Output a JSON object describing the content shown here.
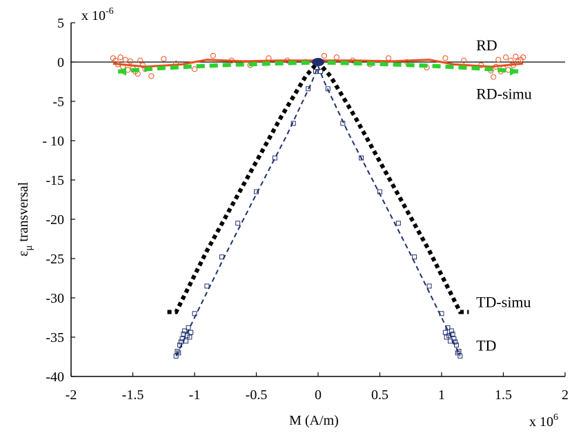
{
  "chart_data": {
    "type": "scatter",
    "xlabel": "M (A/m)",
    "ylabel_symbol": "ε",
    "ylabel_sub": "μ",
    "ylabel_rest": " transversal",
    "x_multiplier_base": "x 10",
    "x_multiplier_exp": "6",
    "y_multiplier_base": "x 10",
    "y_multiplier_exp": "-6",
    "xlim": [
      -2,
      2
    ],
    "ylim": [
      -40,
      5
    ],
    "x_ticks": [
      -2,
      -1.5,
      -1,
      -0.5,
      0,
      0.5,
      1,
      1.5,
      2
    ],
    "x_tick_labels": [
      "-2",
      "-1.5",
      "-1",
      "-0.5",
      "0",
      "0.5",
      "1",
      "1.5",
      "2"
    ],
    "y_ticks": [
      5,
      0,
      -5,
      -10,
      -15,
      -20,
      -25,
      -30,
      -35,
      -40
    ],
    "y_tick_labels": [
      "5",
      "0",
      "-5",
      "- 10",
      "-15",
      "-20",
      "-25",
      "-30",
      "-35",
      "-40"
    ],
    "grid": false,
    "annotations": [
      {
        "text": "RD",
        "x": 1.28,
        "y": 2.2
      },
      {
        "text": "RD-simu",
        "x": 1.28,
        "y": -4.0
      },
      {
        "text": "TD-simu",
        "x": 1.28,
        "y": -30.5
      },
      {
        "text": "TD",
        "x": 1.28,
        "y": -36.0
      }
    ],
    "zero_line": {
      "y": 0,
      "x_range": [
        -2,
        2
      ]
    },
    "series": [
      {
        "key": "rd_meas",
        "marker": "circle",
        "color": "#e8501f",
        "x": [
          -1.66,
          -1.64,
          -1.62,
          -1.6,
          -1.58,
          -1.56,
          -1.54,
          -1.52,
          -1.5,
          -1.48,
          -1.46,
          -1.44,
          -1.42,
          -1.4,
          -1.35,
          -1.25,
          -1.15,
          -1.0,
          -0.85,
          -0.7,
          -0.55,
          -0.4,
          -0.25,
          -0.1,
          0.05,
          0.15,
          0.28,
          0.42,
          0.57,
          0.72,
          0.88,
          1.03,
          1.18,
          1.32,
          1.4,
          1.42,
          1.44,
          1.46,
          1.48,
          1.5,
          1.52,
          1.54,
          1.56,
          1.58,
          1.6,
          1.62,
          1.64,
          1.66
        ],
        "y": [
          0.5,
          0.2,
          -0.3,
          0.6,
          -0.6,
          0.3,
          -1.0,
          0.1,
          -0.8,
          -1.2,
          -1.5,
          0.2,
          -0.4,
          -0.9,
          -1.8,
          0.4,
          -0.2,
          -0.9,
          0.8,
          0.2,
          -0.4,
          0.5,
          0.2,
          0.0,
          0.8,
          0.6,
          0.2,
          -0.3,
          0.5,
          0.0,
          -0.7,
          0.5,
          0.2,
          -0.4,
          -1.1,
          -1.9,
          -0.6,
          0.3,
          -1.2,
          -0.8,
          0.6,
          -1.0,
          0.2,
          -0.4,
          0.7,
          0.1,
          0.3,
          0.6
        ]
      },
      {
        "key": "rd_meas_curve",
        "line": "solid",
        "color": "#e8501f",
        "x": [
          -1.66,
          -1.4,
          -1.1,
          -0.9,
          -0.6,
          -0.3,
          0.0,
          0.3,
          0.6,
          0.9,
          1.1,
          1.4,
          1.66
        ],
        "y": [
          -0.2,
          -0.6,
          -0.3,
          0.3,
          0.1,
          0.2,
          0.2,
          0.2,
          0.1,
          0.3,
          -0.3,
          -0.6,
          -0.2
        ]
      },
      {
        "key": "rd_simu",
        "line": "dashed-thick",
        "color": "#2ed12e",
        "x": [
          -1.62,
          -1.3,
          -1.0,
          -0.7,
          -0.4,
          -0.15,
          0.0,
          0.15,
          0.4,
          0.7,
          1.0,
          1.3,
          1.62
        ],
        "y": [
          -1.2,
          -0.8,
          -0.55,
          -0.35,
          -0.2,
          -0.1,
          -0.05,
          -0.1,
          -0.2,
          -0.35,
          -0.55,
          -0.8,
          -1.2
        ]
      },
      {
        "key": "td_simu",
        "line": "dotted-thick",
        "color": "#000000",
        "x": [
          -1.22,
          -1.15,
          -0.9,
          -0.6,
          -0.3,
          -0.1,
          0.0,
          0.1,
          0.3,
          0.6,
          0.9,
          1.15,
          1.22
        ],
        "y": [
          -31.8,
          -31.8,
          -24.0,
          -15.5,
          -7.0,
          -1.8,
          0.0,
          -1.8,
          -7.0,
          -15.5,
          -24.0,
          -31.8,
          -31.8
        ]
      },
      {
        "key": "td_meas",
        "marker": "square",
        "color": "#1f2f6e",
        "x": [
          -1.15,
          -1.14,
          -1.13,
          -1.12,
          -1.11,
          -1.1,
          -1.09,
          -1.08,
          -1.07,
          -1.06,
          -1.05,
          -1.04,
          -1.03,
          -1.0,
          -0.9,
          -0.78,
          -0.65,
          -0.5,
          -0.35,
          -0.2,
          -0.08,
          -0.02,
          0.02,
          0.08,
          0.2,
          0.35,
          0.5,
          0.65,
          0.78,
          0.9,
          1.0,
          1.03,
          1.04,
          1.05,
          1.06,
          1.07,
          1.08,
          1.09,
          1.1,
          1.11,
          1.12,
          1.13,
          1.14,
          1.15
        ],
        "y": [
          -37.4,
          -36.8,
          -37.0,
          -36.0,
          -35.6,
          -35.2,
          -34.6,
          -34.2,
          -35.5,
          -34.8,
          -33.8,
          -35.0,
          -34.4,
          -32.0,
          -28.5,
          -24.8,
          -20.5,
          -16.5,
          -12.2,
          -7.8,
          -3.4,
          -1.2,
          -1.2,
          -3.4,
          -7.8,
          -12.2,
          -16.5,
          -20.5,
          -24.8,
          -28.5,
          -32.0,
          -34.4,
          -35.0,
          -33.8,
          -34.8,
          -35.5,
          -34.2,
          -34.6,
          -35.2,
          -35.6,
          -36.0,
          -37.0,
          -36.8,
          -37.4
        ]
      },
      {
        "key": "td_meas_curve",
        "line": "dashed",
        "color": "#1f2f6e",
        "x": [
          -1.15,
          -1.0,
          -0.75,
          -0.5,
          -0.25,
          -0.05,
          0.0,
          0.05,
          0.25,
          0.5,
          0.75,
          1.0,
          1.15
        ],
        "y": [
          -37.4,
          -32.5,
          -24.5,
          -16.8,
          -9.2,
          -2.5,
          -0.5,
          -2.5,
          -9.2,
          -16.8,
          -24.5,
          -32.5,
          -37.4
        ]
      }
    ],
    "origin_marker": {
      "x": 0,
      "y": 0,
      "color": "#1f2f6e"
    }
  }
}
